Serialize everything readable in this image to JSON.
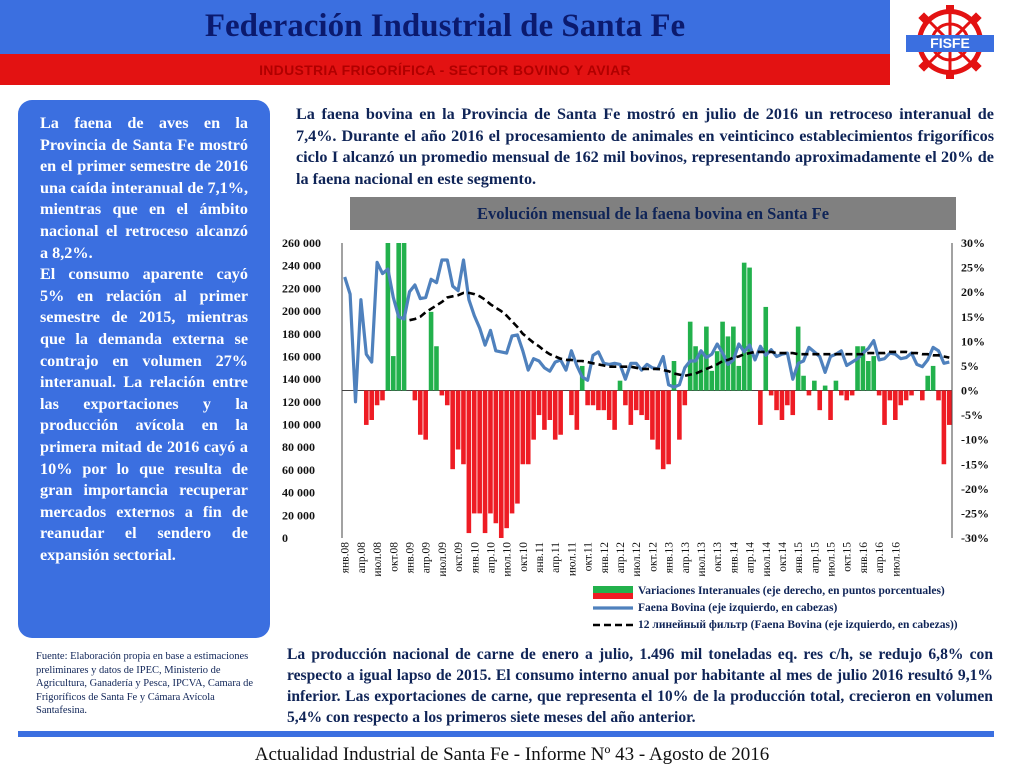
{
  "header": {
    "title": "Federación Industrial de Santa Fe",
    "subtitle": "INDUSTRIA FRIGORÍFICA - SECTOR BOVINO Y AVIAR",
    "logo_text": "FISFE"
  },
  "sidebar": {
    "paragraph1": "La faena de aves en la Provincia de Santa Fe mostró en el primer semestre de 2016 una caída interanual de 7,1%, mientras que en el ámbito nacional el retroceso alcanzó a 8,2%.",
    "paragraph2": "El consumo aparente cayó 5% en relación al primer semestre de 2015, mientras que la demanda externa se contrajo en volumen 27% interanual. La relación entre las exportaciones y la producción avícola en la primera mitad de 2016 cayó a 10% por lo que resulta de gran importancia recuperar mercados externos a fin de reanudar el sendero de expansión sectorial."
  },
  "intro_text": "La faena bovina en la Provincia de Santa Fe mostró en julio de 2016 un retroceso interanual de 7,4%. Durante el año 2016 el procesamiento de animales en veinticinco establecimientos frigoríficos ciclo I alcanzó un promedio mensual de 162 mil bovinos, representando aproximadamente el 20% de la faena nacional en este segmento.",
  "source_text": "Fuente: Elaboración propia en base a estimaciones preliminares y datos de IPEC, Ministerio de Agricultura, Ganadería y Pesca, IPCVA, Camara de Frigoríficos de Santa Fe y Cámara Avícola Santafesina.",
  "bottom_text": "La producción nacional de carne de enero a julio, 1.496 mil toneladas eq. res c/h, se redujo 6,8% con respecto a igual lapso de 2015. El consumo interno anual por habitante al mes de julio 2016 resultó 9,1% inferior. Las exportaciones de carne, que representa el 10% de la producción total, crecieron en volumen 5,4% con respecto a los primeros siete meses del año anterior.",
  "footer": "Actualidad Industrial de Santa Fe - Informe Nº 43 - Agosto de 2016",
  "colors": {
    "header_blue": "#3b6fe0",
    "header_red": "#e31212",
    "bar_positive": "#22b14c",
    "bar_negative": "#ee1c24",
    "line_faena": "#4f81bd",
    "line_trend": "#000000"
  },
  "chart_data": {
    "type": "bar",
    "title": "Evolución mensual de la faena bovina en Santa Fe",
    "x_labels_shown": [
      "янв.08",
      "апр.08",
      "июл.08",
      "окт.08",
      "янв.09",
      "апр.09",
      "июл.09",
      "окт.09",
      "янв.10",
      "апр.10",
      "июл.10",
      "окт.10",
      "янв.11",
      "апр.11",
      "июл.11",
      "окт.11",
      "янв.12",
      "апр.12",
      "июл.12",
      "окт.12",
      "янв.13",
      "апр.13",
      "июл.13",
      "окт.13",
      "янв.14",
      "апр.14",
      "июл.14",
      "окт.14",
      "янв.15",
      "апр.15",
      "июл.15",
      "окт.15",
      "янв.16",
      "апр.16",
      "июл.16"
    ],
    "y_left": {
      "ticks": [
        "0",
        "20 000",
        "40 000",
        "60 000",
        "80 000",
        "100 000",
        "120 000",
        "140 000",
        "160 000",
        "180 000",
        "200 000",
        "220 000",
        "240 000",
        "260 000"
      ],
      "ylim": [
        0,
        260000
      ]
    },
    "y_right": {
      "ticks": [
        "-30%",
        "-25%",
        "-20%",
        "-15%",
        "-10%",
        "-5%",
        "0%",
        "5%",
        "10%",
        "15%",
        "20%",
        "25%",
        "30%"
      ],
      "ylim": [
        -30,
        30
      ]
    },
    "legend": [
      "Variaciones Interanuales (eje derecho, en puntos porcentuales)",
      "Faena Bovina (eje izquierdo, en cabezas)",
      "12 линейный фильтр (Faena Bovina (eje izquierdo, en cabezas))"
    ],
    "legend_position": "bottom",
    "series": [
      {
        "name": "Variaciones Interanuales (eje derecho, en puntos porcentuales)",
        "kind": "bar",
        "axis": "right",
        "values": [
          null,
          null,
          null,
          null,
          -7,
          -6,
          -3,
          -2,
          30,
          7,
          30,
          30,
          0,
          -2,
          -9,
          -10,
          16,
          9,
          -1,
          -3,
          -16,
          -12,
          -15,
          -29,
          -25,
          -25,
          -29,
          -25,
          -27,
          -30,
          -28,
          -25,
          -23,
          -15,
          -15,
          -10,
          -5,
          -8,
          -6,
          -10,
          -9,
          0,
          -5,
          -8,
          5,
          -3,
          -3,
          -4,
          -4,
          -6,
          -8,
          2,
          -3,
          -7,
          -4,
          -5,
          -6,
          -10,
          -12,
          -16,
          -15,
          6,
          -10,
          -3,
          14,
          9,
          8,
          13,
          4,
          8,
          14,
          11,
          13,
          5,
          26,
          25,
          0,
          -7,
          17,
          -1,
          -4,
          -6,
          -3,
          -5,
          13,
          3,
          -1,
          2,
          -4,
          1,
          -6,
          2,
          -1,
          -2,
          -1,
          9,
          9,
          6,
          7,
          -1,
          -7,
          -2,
          -6,
          -3,
          -2,
          -1,
          0,
          -2,
          3,
          5,
          -2,
          -15,
          -7
        ]
      },
      {
        "name": "Faena Bovina (eje izquierdo, en cabezas)",
        "kind": "line",
        "axis": "left",
        "values": [
          230000,
          215000,
          120000,
          210000,
          162000,
          155000,
          243000,
          233000,
          237000,
          212000,
          195000,
          193000,
          217000,
          223000,
          211000,
          212000,
          228000,
          225000,
          245000,
          245000,
          222000,
          218000,
          245000,
          210000,
          196000,
          185000,
          170000,
          183000,
          165000,
          164000,
          163000,
          178000,
          179000,
          165000,
          148000,
          158000,
          156000,
          150000,
          147000,
          155000,
          157000,
          148000,
          165000,
          152000,
          142000,
          139000,
          161000,
          164000,
          154000,
          153000,
          154000,
          153000,
          140000,
          154000,
          154000,
          148000,
          153000,
          150000,
          149000,
          160000,
          135000,
          133000,
          135000,
          150000,
          156000,
          156000,
          165000,
          159000,
          162000,
          171000,
          163000,
          153000,
          157000,
          171000,
          164000,
          170000,
          157000,
          169000,
          161000,
          166000,
          160000,
          162000,
          163000,
          140000,
          154000,
          156000,
          168000,
          164000,
          160000,
          146000,
          160000,
          162000,
          165000,
          152000,
          155000,
          158000,
          163000,
          167000,
          174000,
          157000,
          158000,
          163000,
          162000,
          158000,
          159000,
          163000,
          153000,
          151000,
          157000,
          168000,
          165000,
          154000,
          155000
        ]
      },
      {
        "name": "12 линейный фильтр (Faena Bovina (eje izquierdo, en cabezas))",
        "kind": "dashed-line",
        "axis": "left",
        "values": [
          null,
          null,
          null,
          null,
          null,
          null,
          null,
          null,
          null,
          null,
          null,
          null,
          192000,
          193000,
          195000,
          199000,
          202000,
          205000,
          208000,
          212000,
          213000,
          214000,
          216000,
          216000,
          215000,
          213000,
          210000,
          206000,
          203000,
          200000,
          196000,
          191000,
          186000,
          180000,
          176000,
          172000,
          169000,
          165000,
          162000,
          160000,
          158000,
          157000,
          157000,
          156000,
          156000,
          155000,
          154000,
          153000,
          152000,
          151000,
          151000,
          151000,
          151000,
          151000,
          150000,
          149000,
          149000,
          149000,
          149000,
          148000,
          147000,
          145000,
          144000,
          143000,
          144000,
          145000,
          147000,
          149000,
          151000,
          153000,
          156000,
          157000,
          159000,
          160000,
          162000,
          163000,
          164000,
          164000,
          164000,
          164000,
          163000,
          163000,
          163000,
          163000,
          162000,
          162000,
          162000,
          162000,
          162000,
          162000,
          162000,
          162000,
          162000,
          162000,
          162000,
          162000,
          162000,
          163000,
          163000,
          163000,
          163000,
          164000,
          164000,
          164000,
          164000,
          163000,
          163000,
          162000,
          162000,
          161000,
          161000,
          160000,
          159000
        ]
      }
    ]
  }
}
